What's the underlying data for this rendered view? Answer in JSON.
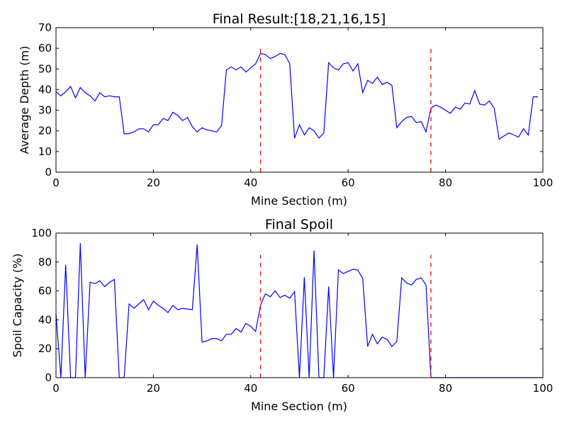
{
  "chart_data": [
    {
      "type": "line",
      "title": "Final Result:[18,21,16,15]",
      "xlabel": "Mine Section (m)",
      "ylabel": "Average Depth (m)",
      "xlim": [
        0,
        100
      ],
      "ylim": [
        0,
        70
      ],
      "xticks": [
        0,
        20,
        40,
        60,
        80,
        100
      ],
      "yticks": [
        0,
        10,
        20,
        30,
        40,
        50,
        60,
        70
      ],
      "series_color": "#0000ff",
      "marker_color": "#ff0000",
      "markers": [
        {
          "x": 42,
          "y_top": 60
        },
        {
          "x": 77,
          "y_top": 60
        }
      ],
      "x": [
        0,
        1,
        2,
        3,
        4,
        5,
        6,
        7,
        8,
        9,
        10,
        11,
        12,
        13,
        14,
        15,
        16,
        17,
        18,
        19,
        20,
        21,
        22,
        23,
        24,
        25,
        26,
        27,
        28,
        29,
        30,
        31,
        32,
        33,
        34,
        35,
        36,
        37,
        38,
        39,
        40,
        41,
        42,
        43,
        44,
        45,
        46,
        47,
        48,
        49,
        50,
        51,
        52,
        53,
        54,
        55,
        56,
        57,
        58,
        59,
        60,
        61,
        62,
        63,
        64,
        65,
        66,
        67,
        68,
        69,
        70,
        71,
        72,
        73,
        74,
        75,
        76,
        77,
        78,
        79,
        80,
        81,
        82,
        83,
        84,
        85,
        86,
        87,
        88,
        89,
        90,
        91,
        92,
        93,
        94,
        95,
        96,
        97,
        98,
        99
      ],
      "y": [
        39,
        37,
        39,
        41.5,
        36,
        41,
        38.5,
        37,
        34.5,
        38.5,
        36.5,
        37,
        36.5,
        36.5,
        18.5,
        18.7,
        19.5,
        21,
        21,
        19.5,
        23,
        23,
        26,
        25,
        29,
        27.5,
        25,
        26.5,
        22,
        19.5,
        21.5,
        20.5,
        20,
        19.5,
        22.5,
        49.5,
        51,
        49.5,
        51,
        48.5,
        50.5,
        52.5,
        57.5,
        57,
        55,
        56,
        57.5,
        57,
        52.5,
        16.5,
        23,
        18,
        21.5,
        20,
        16.5,
        19,
        53,
        50.5,
        49.5,
        52.5,
        53,
        49,
        52.5,
        38.5,
        44.5,
        43,
        46,
        42.5,
        43.5,
        42,
        21.5,
        24.5,
        26.5,
        27,
        24,
        24.5,
        19.5,
        31,
        32.5,
        31.5,
        30,
        28.5,
        31.5,
        30.5,
        33.5,
        33,
        39.5,
        33,
        32.5,
        34.5,
        31,
        16,
        17.5,
        19,
        18,
        17,
        21,
        18,
        36.5,
        36.5
      ]
    },
    {
      "type": "line",
      "title": "Final Spoil",
      "xlabel": "Mine Section (m)",
      "ylabel": "Spoil Capacity (%)",
      "xlim": [
        0,
        100
      ],
      "ylim": [
        0,
        100
      ],
      "xticks": [
        0,
        20,
        40,
        60,
        80,
        100
      ],
      "yticks": [
        0,
        20,
        40,
        60,
        80,
        100
      ],
      "series_color": "#0000ff",
      "marker_color": "#ff0000",
      "markers": [
        {
          "x": 42,
          "y_top": 85
        },
        {
          "x": 77,
          "y_top": 85
        }
      ],
      "x": [
        0,
        1,
        2,
        3,
        4,
        5,
        6,
        7,
        8,
        9,
        10,
        11,
        12,
        13,
        14,
        15,
        16,
        17,
        18,
        19,
        20,
        21,
        22,
        23,
        24,
        25,
        26,
        27,
        28,
        29,
        30,
        31,
        32,
        33,
        34,
        35,
        36,
        37,
        38,
        39,
        40,
        41,
        42,
        43,
        44,
        45,
        46,
        47,
        48,
        49,
        50,
        51,
        52,
        53,
        54,
        55,
        56,
        57,
        58,
        59,
        60,
        61,
        62,
        63,
        64,
        65,
        66,
        67,
        68,
        69,
        70,
        71,
        72,
        73,
        74,
        75,
        76,
        77,
        78,
        79,
        80,
        81,
        82,
        83,
        84,
        85,
        86,
        87,
        88,
        89,
        90,
        91,
        92,
        93,
        94,
        95,
        96,
        97,
        98,
        99,
        100
      ],
      "y": [
        44,
        0,
        78,
        0,
        0,
        93,
        0,
        66,
        65,
        67,
        63,
        66,
        68,
        0,
        0,
        51,
        48,
        51,
        54,
        47,
        53,
        50,
        48,
        45,
        50,
        47,
        48,
        47.5,
        47,
        92,
        24.5,
        25.5,
        27,
        27,
        25.5,
        30,
        30,
        34,
        31.5,
        37.5,
        35.5,
        32,
        50,
        58,
        56,
        60,
        55.5,
        57,
        55,
        59.5,
        0,
        69.5,
        0,
        88,
        0,
        0,
        63,
        0,
        74.5,
        72,
        73.5,
        75,
        74.5,
        68.5,
        21.5,
        30,
        23.5,
        28,
        26.5,
        21.5,
        25,
        69,
        65.5,
        64,
        68,
        69,
        64,
        0,
        0,
        0,
        0,
        0,
        0,
        0,
        0,
        0,
        0,
        0,
        0,
        0,
        0,
        0,
        0,
        0,
        0,
        0,
        0,
        0,
        0,
        0,
        0
      ]
    }
  ]
}
